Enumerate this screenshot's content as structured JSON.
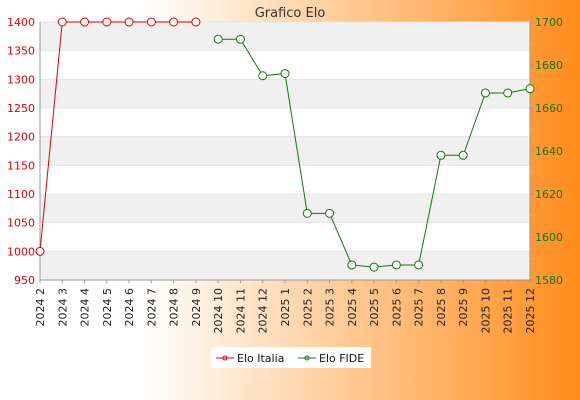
{
  "colors": {
    "bg_left": "#ffffff",
    "bg_right": "#ff8c1a",
    "band": "#f0f0f0",
    "plot_bg": "#ffffff",
    "series_italia": "#dd0000",
    "series_fide": "#117711"
  },
  "chart_data": {
    "type": "line",
    "title": "Grafico Elo",
    "grid": true,
    "legend_position": "bottom-center",
    "categories": [
      "2024 2",
      "2024 3",
      "2024 4",
      "2024 5",
      "2024 6",
      "2024 7",
      "2024 8",
      "2024 9",
      "2024 10",
      "2024 11",
      "2024 12",
      "2025 1",
      "2025 2",
      "2025 3",
      "2025 4",
      "2025 5",
      "2025 6",
      "2025 7",
      "2025 8",
      "2025 9",
      "2025 10",
      "2025 11",
      "2025 12"
    ],
    "y_left": {
      "ylim": [
        950,
        1400
      ],
      "ticks": [
        950,
        1000,
        1050,
        1100,
        1150,
        1200,
        1250,
        1300,
        1350,
        1400
      ]
    },
    "y_right": {
      "ylim": [
        1580,
        1700
      ],
      "ticks": [
        1580,
        1600,
        1620,
        1640,
        1660,
        1680,
        1700
      ]
    },
    "series": [
      {
        "name": "Elo Italia",
        "axis": "left",
        "values": [
          1000,
          1400,
          1400,
          1400,
          1400,
          1400,
          1400,
          1400,
          null,
          null,
          null,
          null,
          null,
          null,
          null,
          null,
          null,
          null,
          null,
          null,
          null,
          null,
          null
        ]
      },
      {
        "name": "Elo FIDE",
        "axis": "right",
        "values": [
          null,
          null,
          null,
          null,
          null,
          null,
          null,
          null,
          1692,
          1692,
          1675,
          1676,
          1611,
          1611,
          1587,
          1586,
          1587,
          1587,
          1638,
          1638,
          1667,
          1667,
          1669
        ]
      }
    ]
  }
}
